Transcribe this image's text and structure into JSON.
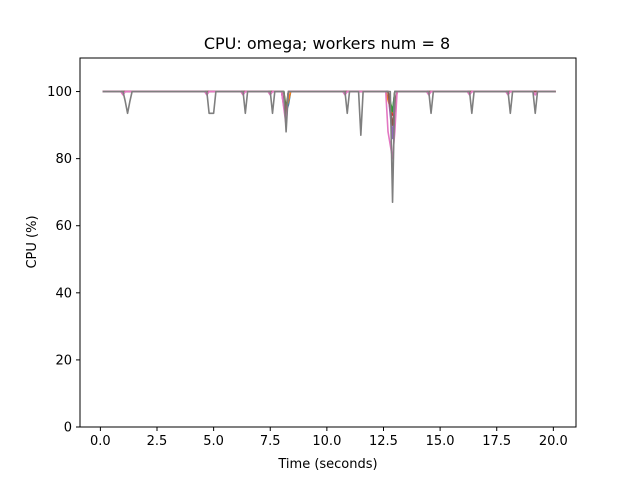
{
  "chart_data": {
    "type": "line",
    "title": "CPU: omega; workers num = 8",
    "xlabel": "Time (seconds)",
    "ylabel": "CPU (%)",
    "xlim": [
      -0.9,
      21.0
    ],
    "ylim": [
      0,
      110
    ],
    "xticks": [
      "0.0",
      "2.5",
      "5.0",
      "7.5",
      "10.0",
      "12.5",
      "15.0",
      "17.5",
      "20.0"
    ],
    "yticks": [
      "0",
      "20",
      "40",
      "60",
      "80",
      "100"
    ],
    "grid": false,
    "legend": false,
    "series": [
      {
        "color": "#1f77b4",
        "x": [
          0.1,
          8.0,
          8.1,
          8.2,
          8.3,
          8.4,
          12.7,
          12.8,
          12.9,
          13.0,
          20.1
        ],
        "y": [
          100,
          100,
          96,
          94,
          96,
          100,
          100,
          96,
          94,
          100,
          100
        ]
      },
      {
        "color": "#ff7f0e",
        "x": [
          0.1,
          8.0,
          8.1,
          8.2,
          8.3,
          8.4,
          12.6,
          12.8,
          12.9,
          13.0,
          20.1
        ],
        "y": [
          100,
          100,
          97,
          94,
          97,
          100,
          100,
          95,
          93,
          100,
          100
        ]
      },
      {
        "color": "#2ca02c",
        "x": [
          0.1,
          8.1,
          8.2,
          8.3,
          12.7,
          12.9,
          13.0,
          20.1
        ],
        "y": [
          100,
          100,
          95,
          100,
          100,
          94,
          100,
          100
        ]
      },
      {
        "color": "#d62728",
        "x": [
          0.1,
          8.0,
          8.2,
          8.3,
          12.7,
          12.8,
          12.9,
          13.0,
          13.1,
          20.1
        ],
        "y": [
          100,
          100,
          92,
          100,
          100,
          94,
          93,
          94,
          100,
          100
        ]
      },
      {
        "color": "#9467bd",
        "x": [
          0.1,
          8.0,
          8.2,
          8.3,
          12.7,
          12.9,
          13.0,
          20.1
        ],
        "y": [
          100,
          100,
          91,
          100,
          100,
          86,
          100,
          100
        ]
      },
      {
        "color": "#8c564b",
        "x": [
          0.1,
          8.1,
          8.2,
          8.3,
          12.7,
          12.9,
          13.1,
          20.1
        ],
        "y": [
          100,
          100,
          93,
          100,
          100,
          90,
          100,
          100
        ]
      },
      {
        "color": "#e377c2",
        "x": [
          0.1,
          0.9,
          1.0,
          1.1,
          4.6,
          4.7,
          4.8,
          6.2,
          6.3,
          6.4,
          7.4,
          7.5,
          7.6,
          8.0,
          8.2,
          8.3,
          10.7,
          10.8,
          10.9,
          12.6,
          12.7,
          12.9,
          13.0,
          13.1,
          14.4,
          14.5,
          14.6,
          16.2,
          16.3,
          16.4,
          17.9,
          18.0,
          18.1,
          19.1,
          19.2,
          19.3,
          20.1
        ],
        "y": [
          100,
          100,
          99,
          100,
          100,
          99,
          100,
          100,
          99,
          100,
          100,
          99,
          100,
          100,
          90,
          100,
          100,
          99,
          100,
          100,
          88,
          80,
          88,
          100,
          100,
          99,
          100,
          100,
          99,
          100,
          100,
          99,
          100,
          100,
          99,
          100,
          100
        ]
      },
      {
        "color": "#7f7f7f",
        "x": [
          0.1,
          1.0,
          1.1,
          1.2,
          1.3,
          1.4,
          4.7,
          4.8,
          4.9,
          5.0,
          5.1,
          6.3,
          6.4,
          6.5,
          7.5,
          7.6,
          7.7,
          8.1,
          8.2,
          8.3,
          10.8,
          10.9,
          11.0,
          11.4,
          11.5,
          11.6,
          12.8,
          12.9,
          13.0,
          14.5,
          14.6,
          14.7,
          16.3,
          16.4,
          16.5,
          18.0,
          18.1,
          18.2,
          19.1,
          19.2,
          19.3,
          20.1
        ],
        "y": [
          100,
          100,
          97,
          93.5,
          97,
          100,
          100,
          93.5,
          93.5,
          93.5,
          100,
          100,
          93.5,
          100,
          100,
          93.5,
          100,
          100,
          88,
          100,
          100,
          93.5,
          100,
          100,
          87,
          100,
          100,
          67,
          100,
          100,
          93.5,
          100,
          100,
          93.5,
          100,
          100,
          93.5,
          100,
          100,
          93.5,
          100,
          100
        ]
      }
    ]
  }
}
